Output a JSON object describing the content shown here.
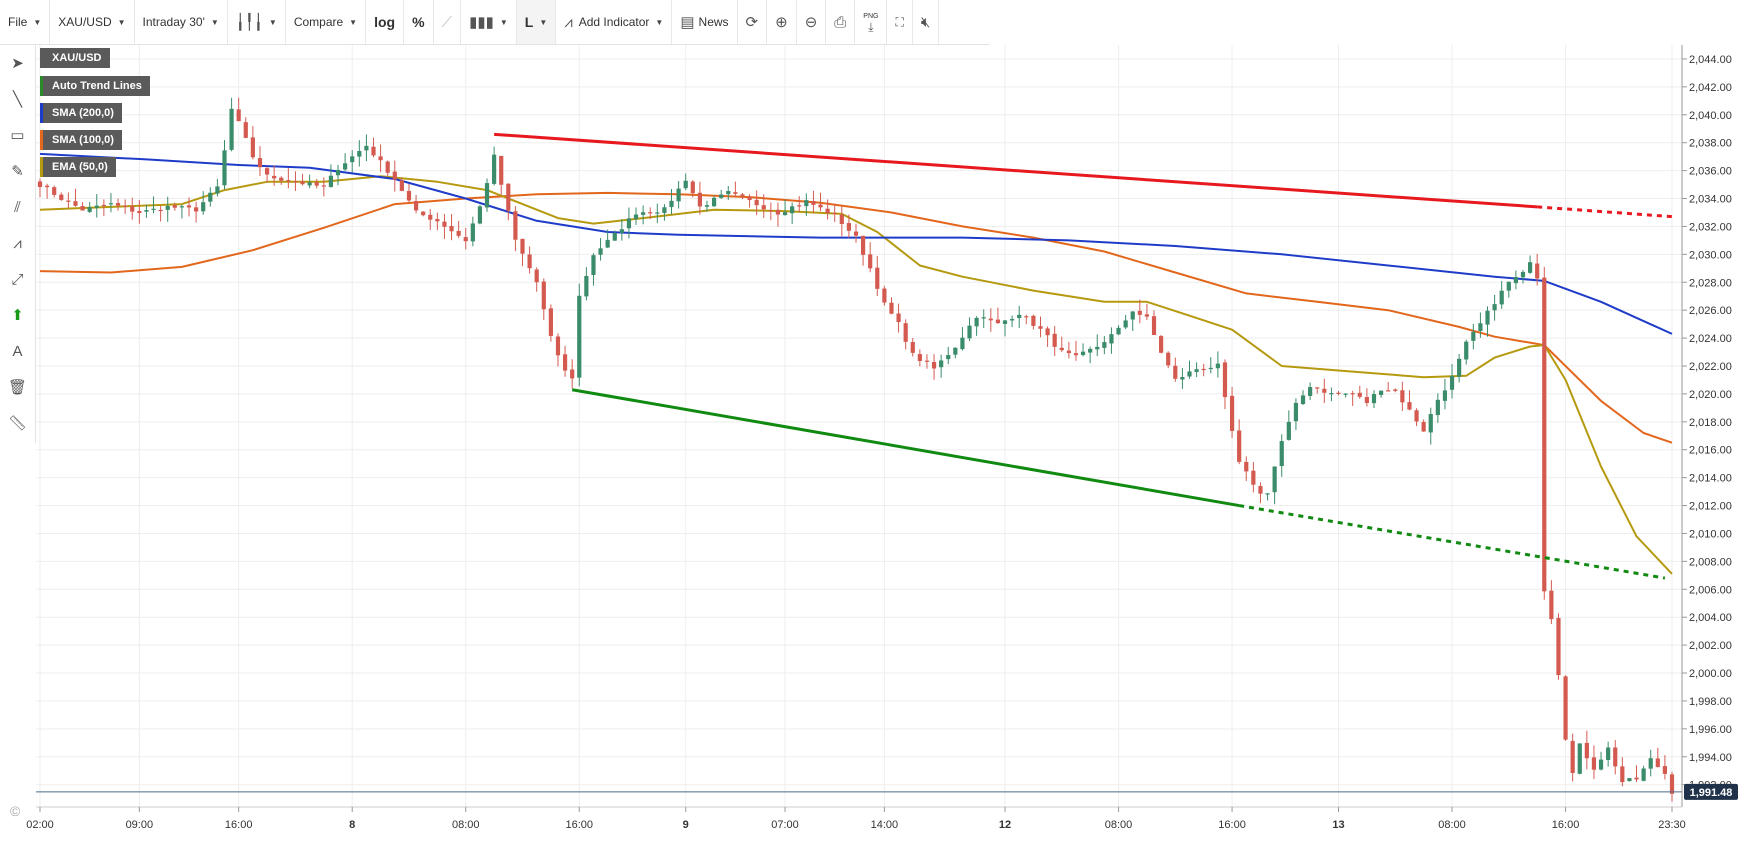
{
  "toolbar": {
    "file": "File",
    "symbol": "XAU/USD",
    "interval": "Intraday 30'",
    "compare": "Compare",
    "log": "log",
    "percent": "%",
    "line_mode": "L",
    "add_indicator": "Add Indicator",
    "news": "News",
    "png": "PNG"
  },
  "legend": {
    "symbol": "XAU/USD",
    "trend": "Auto Trend Lines",
    "sma200": "SMA (200,0)",
    "sma100": "SMA (100,0)",
    "ema50": "EMA (50,0)"
  },
  "colors": {
    "sma200": "#1f3cc9",
    "sma100": "#e2661b",
    "ema50": "#b59a0f",
    "resistance": "#e8181f",
    "support": "#108a10",
    "bull": "#3a8c6a",
    "bear": "#d45a50"
  },
  "copyright": "©",
  "chart_data": {
    "type": "candlestick",
    "symbol": "XAU/USD",
    "y_range": [
      1990.4,
      2045
    ],
    "last_price": "1,991.48",
    "y_ticks": [
      {
        "value": 1992,
        "label": "1,992.00"
      },
      {
        "value": 1994,
        "label": "1,994.00"
      },
      {
        "value": 1996,
        "label": "1,996.00"
      },
      {
        "value": 1998,
        "label": "1,998.00"
      },
      {
        "value": 2000,
        "label": "2,000.00"
      },
      {
        "value": 2002,
        "label": "2,002.00"
      },
      {
        "value": 2004,
        "label": "2,004.00"
      },
      {
        "value": 2006,
        "label": "2,006.00"
      },
      {
        "value": 2008,
        "label": "2,008.00"
      },
      {
        "value": 2010,
        "label": "2,010.00"
      },
      {
        "value": 2012,
        "label": "2,012.00"
      },
      {
        "value": 2014,
        "label": "2,014.00"
      },
      {
        "value": 2016,
        "label": "2,016.00"
      },
      {
        "value": 2018,
        "label": "2,018.00"
      },
      {
        "value": 2020,
        "label": "2,020.00"
      },
      {
        "value": 2022,
        "label": "2,022.00"
      },
      {
        "value": 2024,
        "label": "2,024.00"
      },
      {
        "value": 2026,
        "label": "2,026.00"
      },
      {
        "value": 2028,
        "label": "2,028.00"
      },
      {
        "value": 2030,
        "label": "2,030.00"
      },
      {
        "value": 2032,
        "label": "2,032.00"
      },
      {
        "value": 2034,
        "label": "2,034.00"
      },
      {
        "value": 2036,
        "label": "2,036.00"
      },
      {
        "value": 2038,
        "label": "2,038.00"
      },
      {
        "value": 2040,
        "label": "2,040.00"
      },
      {
        "value": 2042,
        "label": "2,042.00"
      },
      {
        "value": 2044,
        "label": "2,044.00"
      }
    ],
    "x_labels": [
      {
        "bar": 0,
        "label": "02:00",
        "bold": false
      },
      {
        "bar": 14,
        "label": "09:00",
        "bold": false
      },
      {
        "bar": 28,
        "label": "16:00",
        "bold": false
      },
      {
        "bar": 44,
        "label": "8",
        "bold": true
      },
      {
        "bar": 60,
        "label": "08:00",
        "bold": false
      },
      {
        "bar": 76,
        "label": "16:00",
        "bold": false
      },
      {
        "bar": 91,
        "label": "9",
        "bold": true
      },
      {
        "bar": 105,
        "label": "07:00",
        "bold": false
      },
      {
        "bar": 119,
        "label": "14:00",
        "bold": false
      },
      {
        "bar": 136,
        "label": "12",
        "bold": true
      },
      {
        "bar": 152,
        "label": "08:00",
        "bold": false
      },
      {
        "bar": 168,
        "label": "16:00",
        "bold": false
      },
      {
        "bar": 183,
        "label": "13",
        "bold": true
      },
      {
        "bar": 199,
        "label": "08:00",
        "bold": false
      },
      {
        "bar": 215,
        "label": "16:00",
        "bold": false
      },
      {
        "bar": 230,
        "label": "23:30",
        "bold": false
      }
    ],
    "close_anchors": [
      [
        0,
        2035
      ],
      [
        3,
        2034
      ],
      [
        6,
        2033.2
      ],
      [
        10,
        2033.6
      ],
      [
        14,
        2033
      ],
      [
        18,
        2033.4
      ],
      [
        22,
        2033.2
      ],
      [
        25,
        2034.8
      ],
      [
        26,
        2037.4
      ],
      [
        27,
        2040.4
      ],
      [
        28,
        2039.4
      ],
      [
        30,
        2037
      ],
      [
        32,
        2035.6
      ],
      [
        36,
        2035.2
      ],
      [
        40,
        2034.8
      ],
      [
        42,
        2036.2
      ],
      [
        46,
        2037.8
      ],
      [
        50,
        2035.4
      ],
      [
        53,
        2033
      ],
      [
        56,
        2032.4
      ],
      [
        60,
        2031
      ],
      [
        62,
        2033.4
      ],
      [
        64,
        2037
      ],
      [
        65,
        2035
      ],
      [
        67,
        2031
      ],
      [
        70,
        2028
      ],
      [
        72,
        2024
      ],
      [
        74,
        2021.6
      ],
      [
        75,
        2021.2
      ],
      [
        76,
        2027
      ],
      [
        78,
        2030
      ],
      [
        81,
        2031.4
      ],
      [
        84,
        2033
      ],
      [
        88,
        2033.2
      ],
      [
        91,
        2035.4
      ],
      [
        93,
        2033.4
      ],
      [
        97,
        2034.4
      ],
      [
        100,
        2033.8
      ],
      [
        104,
        2033
      ],
      [
        108,
        2033.8
      ],
      [
        112,
        2032.8
      ],
      [
        115,
        2031.2
      ],
      [
        117,
        2029
      ],
      [
        119,
        2026.4
      ],
      [
        121,
        2025
      ],
      [
        123,
        2022.8
      ],
      [
        126,
        2021.8
      ],
      [
        129,
        2023.4
      ],
      [
        132,
        2025.6
      ],
      [
        135,
        2025
      ],
      [
        138,
        2025.8
      ],
      [
        141,
        2024.6
      ],
      [
        144,
        2023
      ],
      [
        146,
        2022.6
      ],
      [
        149,
        2023.4
      ],
      [
        152,
        2024.6
      ],
      [
        154,
        2026
      ],
      [
        156,
        2025.4
      ],
      [
        158,
        2023
      ],
      [
        160,
        2021
      ],
      [
        163,
        2021.8
      ],
      [
        166,
        2022
      ],
      [
        167,
        2019.6
      ],
      [
        169,
        2015
      ],
      [
        171,
        2013.6
      ],
      [
        172,
        2012.8
      ],
      [
        173,
        2013
      ],
      [
        175,
        2016.6
      ],
      [
        177,
        2019.2
      ],
      [
        179,
        2020.6
      ],
      [
        182,
        2020
      ],
      [
        185,
        2020
      ],
      [
        187,
        2019.4
      ],
      [
        189,
        2020.4
      ],
      [
        191,
        2020.2
      ],
      [
        193,
        2018.8
      ],
      [
        195,
        2017.4
      ],
      [
        197,
        2019.6
      ],
      [
        199,
        2021.2
      ],
      [
        201,
        2023.6
      ],
      [
        203,
        2025
      ],
      [
        205,
        2026.6
      ],
      [
        207,
        2028
      ],
      [
        209,
        2028.6
      ],
      [
        210,
        2029.6
      ],
      [
        211,
        2028.4
      ],
      [
        212,
        2006
      ],
      [
        213,
        2004
      ],
      [
        214,
        2000
      ],
      [
        215,
        1995.4
      ],
      [
        216,
        1992.8
      ],
      [
        217,
        1994.8
      ],
      [
        218,
        1994
      ],
      [
        219,
        1993.2
      ],
      [
        221,
        1994.6
      ],
      [
        223,
        1992.2
      ],
      [
        225,
        1992.4
      ],
      [
        227,
        1993.8
      ],
      [
        229,
        1992.8
      ],
      [
        230,
        1991.5
      ]
    ],
    "sma200": [
      [
        0,
        2037.2
      ],
      [
        15,
        2036.8
      ],
      [
        28,
        2036.4
      ],
      [
        38,
        2036.2
      ],
      [
        50,
        2035.4
      ],
      [
        60,
        2034
      ],
      [
        70,
        2032.4
      ],
      [
        80,
        2031.6
      ],
      [
        90,
        2031.4
      ],
      [
        110,
        2031.2
      ],
      [
        130,
        2031.2
      ],
      [
        145,
        2031
      ],
      [
        160,
        2030.6
      ],
      [
        175,
        2030
      ],
      [
        190,
        2029.2
      ],
      [
        205,
        2028.4
      ],
      [
        212,
        2028.1
      ],
      [
        220,
        2026.6
      ],
      [
        230,
        2024.3
      ]
    ],
    "sma100": [
      [
        0,
        2028.8
      ],
      [
        10,
        2028.7
      ],
      [
        20,
        2029.1
      ],
      [
        30,
        2030.3
      ],
      [
        40,
        2031.9
      ],
      [
        50,
        2033.6
      ],
      [
        60,
        2034
      ],
      [
        70,
        2034.3
      ],
      [
        80,
        2034.4
      ],
      [
        90,
        2034.3
      ],
      [
        100,
        2034.1
      ],
      [
        110,
        2033.7
      ],
      [
        120,
        2033
      ],
      [
        130,
        2032
      ],
      [
        140,
        2031.2
      ],
      [
        150,
        2030.2
      ],
      [
        160,
        2028.7
      ],
      [
        170,
        2027.2
      ],
      [
        180,
        2026.6
      ],
      [
        190,
        2026
      ],
      [
        200,
        2024.8
      ],
      [
        205,
        2024.1
      ],
      [
        212,
        2023.5
      ],
      [
        220,
        2019.5
      ],
      [
        226,
        2017.2
      ],
      [
        230,
        2016.5
      ]
    ],
    "ema50": [
      [
        0,
        2033.2
      ],
      [
        10,
        2033.4
      ],
      [
        20,
        2033.6
      ],
      [
        26,
        2034.6
      ],
      [
        32,
        2035.2
      ],
      [
        40,
        2035.2
      ],
      [
        48,
        2035.6
      ],
      [
        56,
        2035.2
      ],
      [
        63,
        2034.6
      ],
      [
        68,
        2033.6
      ],
      [
        73,
        2032.6
      ],
      [
        78,
        2032.2
      ],
      [
        85,
        2032.6
      ],
      [
        95,
        2033.2
      ],
      [
        105,
        2033.1
      ],
      [
        113,
        2032.9
      ],
      [
        118,
        2031.6
      ],
      [
        124,
        2029.2
      ],
      [
        130,
        2028.4
      ],
      [
        140,
        2027.4
      ],
      [
        150,
        2026.6
      ],
      [
        156,
        2026.6
      ],
      [
        162,
        2025.6
      ],
      [
        168,
        2024.6
      ],
      [
        175,
        2022
      ],
      [
        185,
        2021.6
      ],
      [
        195,
        2021.2
      ],
      [
        201,
        2021.3
      ],
      [
        205,
        2022.6
      ],
      [
        210,
        2023.4
      ],
      [
        212,
        2023.5
      ],
      [
        215,
        2021
      ],
      [
        220,
        2014.8
      ],
      [
        225,
        2009.8
      ],
      [
        230,
        2007.1
      ]
    ],
    "resistance": {
      "start": [
        64,
        2038.6
      ],
      "end": [
        211,
        2033.4
      ],
      "projection_end": [
        230,
        2032.7
      ]
    },
    "support": {
      "start": [
        75,
        2020.3
      ],
      "end": [
        169,
        2012
      ],
      "projection_end": [
        229,
        2006.8
      ]
    },
    "n_bars": 231
  }
}
